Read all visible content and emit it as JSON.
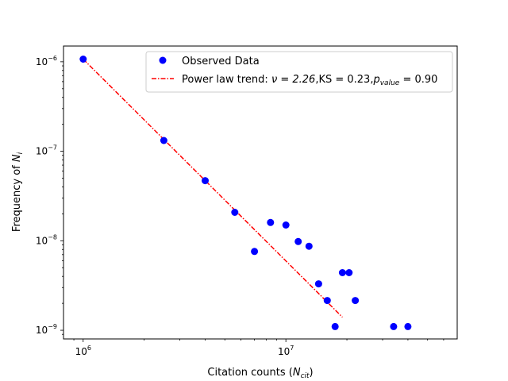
{
  "chart_data": {
    "type": "scatter",
    "title": "",
    "xlabel": {
      "prefix": "Citation counts (",
      "var": "N",
      "sub": "cit",
      "suffix": ")"
    },
    "ylabel": {
      "prefix": "Frequency of ",
      "var": "N",
      "sub": "i"
    },
    "xscale": "log",
    "yscale": "log",
    "xlim": [
      800000,
      70000000
    ],
    "ylim": [
      8e-10,
      1.5e-06
    ],
    "xticks": [
      {
        "value": 1000000,
        "base": "10",
        "exp": "6"
      },
      {
        "value": 10000000,
        "base": "10",
        "exp": "7"
      }
    ],
    "yticks": [
      {
        "value": 1e-09,
        "base": "10",
        "exp": "−9"
      },
      {
        "value": 1e-08,
        "base": "10",
        "exp": "−8"
      },
      {
        "value": 1e-07,
        "base": "10",
        "exp": "−7"
      },
      {
        "value": 1e-06,
        "base": "10",
        "exp": "−6"
      }
    ],
    "series": [
      {
        "name": "Observed Data",
        "kind": "scatter",
        "color": "#0000ff",
        "points": [
          [
            1000000,
            1.07e-06
          ],
          [
            2500000,
            1.32e-07
          ],
          [
            4000000,
            4.7e-08
          ],
          [
            5600000,
            2.08e-08
          ],
          [
            7000000,
            7.6e-09
          ],
          [
            8400000,
            1.6e-08
          ],
          [
            10000000,
            1.5e-08
          ],
          [
            11500000,
            9.8e-09
          ],
          [
            13000000,
            8.7e-09
          ],
          [
            14500000,
            3.3e-09
          ],
          [
            16000000,
            2.15e-09
          ],
          [
            17500000,
            1.1e-09
          ],
          [
            19000000,
            4.4e-09
          ],
          [
            20500000,
            4.4e-09
          ],
          [
            22000000,
            2.15e-09
          ],
          [
            34000000,
            1.1e-09
          ],
          [
            40000000,
            1.1e-09
          ]
        ]
      },
      {
        "name": "Power law trend",
        "kind": "line",
        "color": "#ff0000",
        "points": [
          [
            1000000,
            1.07e-06
          ],
          [
            19000000,
            1.4e-09
          ]
        ]
      }
    ],
    "legend": {
      "position": "top-right",
      "entries": [
        {
          "label": "Observed Data"
        },
        {
          "label_prefix": "Power law trend: ",
          "nu": "ν = 2.26",
          "ks": ",KS = 0.23,",
          "p": "p",
          "p_sub": "value",
          "p_val": " = 0.90"
        }
      ]
    }
  }
}
